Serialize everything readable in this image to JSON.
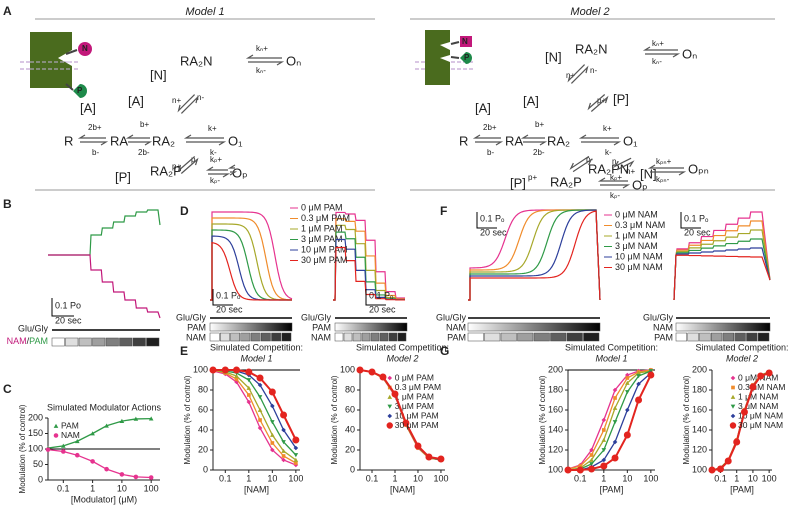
{
  "figure": {
    "letters": [
      "A",
      "B",
      "C",
      "D",
      "E",
      "F",
      "G"
    ],
    "model1": {
      "title": "Model 1",
      "labels": [
        "N",
        "P",
        "[N]",
        "RA₂N",
        "kₙ+",
        "kₙ-",
        "Oₙ",
        "n+",
        "n-",
        "[A]",
        "[A]",
        "R",
        "2b+",
        "b-",
        "RA",
        "b+",
        "2b-",
        "RA₂",
        "k+",
        "k-",
        "O₁",
        "p-",
        "p+",
        "[P]",
        "RA₂P",
        "kₚ+",
        "kₚ-",
        "Oₚ"
      ]
    },
    "model2": {
      "title": "Model 2",
      "labels": [
        "N",
        "P",
        "[N]",
        "RA₂N",
        "kₙ+",
        "kₙ-",
        "Oₙ",
        "n+",
        "n-",
        "p+",
        "[P]",
        "[A]",
        "[A]",
        "R",
        "2b+",
        "b-",
        "RA",
        "b+",
        "2b-",
        "RA₂",
        "k+",
        "k-",
        "O₁",
        "p-",
        "RA₂PN",
        "kₚₙ+",
        "kₚₙ-",
        "Oₚₙ",
        "n-",
        "n+",
        "[N]",
        "p+",
        "[P]",
        "RA₂P",
        "kₚ+",
        "kₚ-",
        "Oₚ"
      ]
    },
    "B": {
      "scale_y": "0.1 Po",
      "scale_x": "20 sec",
      "stim": "Glu/Gly",
      "mod_nam": "NAM",
      "mod_sep": "/",
      "mod_pam": "PAM"
    },
    "D": {
      "legend": [
        "0 μM PAM",
        "0.3 μM PAM",
        "1 μM PAM",
        "3 μM PAM",
        "10 μM PAM",
        "30 μM PAM"
      ],
      "scale_y": "0.1 Pₒ",
      "scale_x": "20 sec",
      "stim": [
        "Glu/Gly",
        "PAM",
        "NAM"
      ]
    },
    "F": {
      "legend": [
        "0 μM NAM",
        "0.3 μM NAM",
        "1 μM NAM",
        "3 μM NAM",
        "10 μM NAM",
        "30 μM NAM"
      ],
      "scale_y": "0.1 Pₒ",
      "scale_x": "20 sec",
      "stim": [
        "Glu/Gly",
        "NAM",
        "PAM"
      ]
    }
  },
  "chart_data": [
    {
      "type": "line",
      "title": "Simulated Modulator Actions",
      "xlabel": "[Modulator] (μM)",
      "ylabel": "Modulation (% of control)",
      "xscale": "log",
      "xlim": [
        0.03,
        200
      ],
      "ylim": [
        0,
        200
      ],
      "xticks": [
        0.1,
        1,
        10,
        100
      ],
      "yticks": [
        0,
        50,
        100,
        150,
        200
      ],
      "reference_line": 100,
      "legend": "upper left",
      "x": [
        0.03,
        0.1,
        0.3,
        1,
        3,
        10,
        30,
        100
      ],
      "series": [
        {
          "name": "PAM",
          "color": "#2f9a47",
          "marker": "triangle",
          "values": [
            103,
            110,
            125,
            150,
            175,
            190,
            197,
            198
          ]
        },
        {
          "name": "NAM",
          "color": "#e6338f",
          "marker": "circle",
          "values": [
            98,
            92,
            80,
            60,
            35,
            18,
            10,
            8
          ]
        }
      ]
    },
    {
      "type": "line",
      "title": "Simulated Competition:",
      "subtitle": "Model 1",
      "xlabel": "[NAM]",
      "ylabel": "Modulation (% of control)",
      "xscale": "log",
      "xlim": [
        0.03,
        150
      ],
      "ylim": [
        0,
        100
      ],
      "xticks": [
        0.1,
        1,
        10,
        100
      ],
      "yticks": [
        0,
        20,
        40,
        60,
        80,
        100
      ],
      "reference_line": 100,
      "x": [
        0.03,
        0.1,
        0.3,
        1,
        3,
        10,
        30,
        100
      ],
      "series": [
        {
          "color": "#e6338f",
          "marker": "diamond",
          "values": [
            99,
            96,
            88,
            68,
            42,
            20,
            10,
            5
          ]
        },
        {
          "color": "#f08c2c",
          "marker": "square",
          "values": [
            100,
            97,
            91,
            75,
            50,
            27,
            14,
            7
          ]
        },
        {
          "color": "#a7a82a",
          "marker": "triangle",
          "values": [
            100,
            98,
            94,
            82,
            60,
            35,
            19,
            10
          ]
        },
        {
          "color": "#2f9a47",
          "marker": "triangle-down",
          "values": [
            100,
            99,
            97,
            90,
            73,
            48,
            28,
            15
          ]
        },
        {
          "color": "#2d3f9b",
          "marker": "diamond",
          "values": [
            100,
            100,
            99,
            95,
            85,
            64,
            40,
            22
          ]
        },
        {
          "color": "#e3241f",
          "marker": "circle",
          "values": [
            100,
            100,
            100,
            98,
            92,
            78,
            55,
            30
          ]
        }
      ]
    },
    {
      "type": "line",
      "title": "Simulated Competition:",
      "subtitle": "Model 2",
      "xlabel": "[NAM]",
      "ylabel": "Modulation (% of control)",
      "xscale": "log",
      "xlim": [
        0.03,
        150
      ],
      "ylim": [
        0,
        100
      ],
      "xticks": [
        0.1,
        1,
        10,
        100
      ],
      "yticks": [
        0,
        20,
        40,
        60,
        80,
        100
      ],
      "legend": "upper right",
      "x": [
        0.03,
        0.1,
        0.3,
        1,
        3,
        10,
        30,
        100
      ],
      "series": [
        {
          "name": "0 μM PAM",
          "color": "#e6338f",
          "marker": "diamond",
          "values": [
            100,
            98,
            92,
            74,
            45,
            22,
            12,
            10
          ]
        },
        {
          "name": "0.3 μM PAM",
          "color": "#f08c2c",
          "marker": "square",
          "values": [
            100,
            98,
            92,
            75,
            45,
            22,
            12,
            10
          ]
        },
        {
          "name": "1 μM PAM",
          "color": "#a7a82a",
          "marker": "triangle",
          "values": [
            100,
            98,
            92,
            75,
            46,
            23,
            12,
            10
          ]
        },
        {
          "name": "3 μM PAM",
          "color": "#2f9a47",
          "marker": "triangle-down",
          "values": [
            100,
            98,
            93,
            75,
            46,
            23,
            13,
            10
          ]
        },
        {
          "name": "10 μM PAM",
          "color": "#2d3f9b",
          "marker": "diamond",
          "values": [
            100,
            98,
            93,
            76,
            47,
            23,
            13,
            10
          ]
        },
        {
          "name": "30 μM PAM",
          "color": "#e3241f",
          "marker": "circle",
          "values": [
            100,
            98,
            93,
            76,
            47,
            24,
            13,
            11
          ]
        }
      ]
    },
    {
      "type": "line",
      "title": "Simulated Competition:",
      "subtitle": "Model 1",
      "xlabel": "[PAM]",
      "ylabel": "Modulation (% of control)",
      "xscale": "log",
      "xlim": [
        0.03,
        150
      ],
      "ylim": [
        100,
        200
      ],
      "xticks": [
        0.1,
        1,
        10,
        100
      ],
      "yticks": [
        100,
        120,
        140,
        160,
        180,
        200
      ],
      "reference_line": 200,
      "x": [
        0.03,
        0.1,
        0.3,
        1,
        3,
        10,
        30,
        100
      ],
      "series": [
        {
          "color": "#e6338f",
          "marker": "diamond",
          "values": [
            101,
            105,
            120,
            150,
            180,
            195,
            199,
            200
          ]
        },
        {
          "color": "#f08c2c",
          "marker": "square",
          "values": [
            101,
            104,
            115,
            140,
            172,
            192,
            198,
            200
          ]
        },
        {
          "color": "#a7a82a",
          "marker": "triangle",
          "values": [
            100,
            102,
            110,
            130,
            162,
            187,
            197,
            199
          ]
        },
        {
          "color": "#2f9a47",
          "marker": "triangle-down",
          "values": [
            100,
            101,
            106,
            120,
            148,
            178,
            194,
            199
          ]
        },
        {
          "color": "#2d3f9b",
          "marker": "diamond",
          "values": [
            100,
            100,
            103,
            110,
            128,
            160,
            186,
            197
          ]
        },
        {
          "color": "#e3241f",
          "marker": "circle",
          "values": [
            100,
            100,
            101,
            104,
            112,
            135,
            170,
            195
          ]
        }
      ]
    },
    {
      "type": "line",
      "title": "Simulated Competition:",
      "subtitle": "Model 2",
      "xlabel": "[PAM]",
      "ylabel": "Modulation (% of control)",
      "xscale": "log",
      "xlim": [
        0.03,
        150
      ],
      "ylim": [
        100,
        200
      ],
      "xticks": [
        0.1,
        1,
        10,
        100
      ],
      "yticks": [
        100,
        120,
        140,
        160,
        180,
        200
      ],
      "legend": "upper right",
      "x": [
        0.03,
        0.1,
        0.3,
        1,
        3,
        10,
        30,
        100
      ],
      "series": [
        {
          "name": "0 μM NAM",
          "color": "#e6338f",
          "marker": "diamond",
          "values": [
            100,
            102,
            110,
            130,
            160,
            185,
            195,
            198
          ]
        },
        {
          "name": "0.3 μM NAM",
          "color": "#f08c2c",
          "marker": "square",
          "values": [
            100,
            102,
            110,
            130,
            160,
            185,
            195,
            198
          ]
        },
        {
          "name": "1 μM NAM",
          "color": "#a7a82a",
          "marker": "triangle",
          "values": [
            100,
            102,
            110,
            129,
            159,
            184,
            195,
            198
          ]
        },
        {
          "name": "3 μM NAM",
          "color": "#2f9a47",
          "marker": "triangle-down",
          "values": [
            100,
            102,
            109,
            129,
            159,
            184,
            194,
            198
          ]
        },
        {
          "name": "10 μM NAM",
          "color": "#2d3f9b",
          "marker": "diamond",
          "values": [
            100,
            101,
            109,
            128,
            158,
            184,
            194,
            197
          ]
        },
        {
          "name": "30 μM NAM",
          "color": "#e3241f",
          "marker": "circle",
          "values": [
            100,
            101,
            109,
            128,
            158,
            183,
            194,
            197
          ]
        }
      ]
    }
  ]
}
